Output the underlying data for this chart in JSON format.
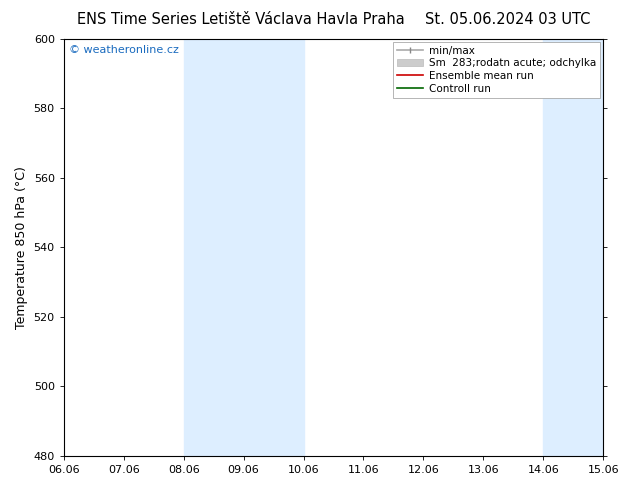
{
  "title_left": "ENS Time Series Letiště Václava Havla Praha",
  "title_right": "St. 05.06.2024 03 UTC",
  "ylabel": "Temperature 850 hPa (°C)",
  "ylim": [
    480,
    600
  ],
  "yticks": [
    480,
    500,
    520,
    540,
    560,
    580,
    600
  ],
  "xlabels": [
    "06.06",
    "07.06",
    "08.06",
    "09.06",
    "10.06",
    "11.06",
    "12.06",
    "13.06",
    "14.06",
    "15.06"
  ],
  "watermark": "© weatheronline.cz",
  "watermark_color": "#1a6bbf",
  "shaded_bands": [
    {
      "xstart": 2.0,
      "xend": 4.0,
      "color": "#ddeeff"
    },
    {
      "xstart": 8.0,
      "xend": 9.0,
      "color": "#ddeeff"
    }
  ],
  "bg_color": "#ffffff",
  "plot_bg_color": "#ffffff",
  "title_fontsize": 10.5,
  "label_fontsize": 9,
  "tick_fontsize": 8,
  "legend_fontsize": 7.5,
  "border_color": "#888888",
  "spine_color": "#000000"
}
